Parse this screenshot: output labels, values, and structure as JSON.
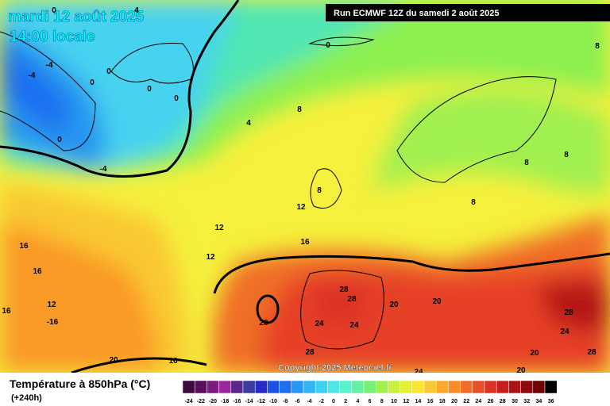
{
  "header": {
    "date": "mardi 12 août 2025",
    "time": "14:00 locale",
    "run": "Run ECMWF 12Z du samedi 2 août 2025"
  },
  "map": {
    "contour_labels": [
      "0",
      "4",
      "-4",
      "-4",
      "0",
      "0",
      "0",
      "0",
      "0",
      "-4",
      "0",
      "8",
      "4",
      "8",
      "8",
      "8",
      "8",
      "8",
      "12",
      "12",
      "12",
      "16",
      "16",
      "16",
      "12",
      "16",
      "-16",
      "20",
      "28",
      "28",
      "24",
      "24",
      "20",
      "20",
      "28",
      "24",
      "28",
      "20",
      "28",
      "20",
      "16",
      "20",
      "24"
    ],
    "copyright": "Copyright 2025 Meteociel.fr"
  },
  "legend": {
    "title": "Température à 850hPa (°C)",
    "lead": "(+240h)",
    "labels": [
      -24,
      -22,
      -20,
      -18,
      -16,
      -14,
      -12,
      -10,
      -8,
      -6,
      -4,
      -2,
      0,
      2,
      4,
      6,
      8,
      10,
      12,
      14,
      16,
      18,
      20,
      22,
      24,
      26,
      28,
      30,
      32,
      34,
      36
    ],
    "colors": [
      "#3c0a3c",
      "#5a0f5a",
      "#7d1a7d",
      "#9a289a",
      "#5a2a8a",
      "#3c3ca0",
      "#2a2ac8",
      "#1e50e6",
      "#1e6ef0",
      "#2896f0",
      "#32b4f0",
      "#3cd2f0",
      "#50e6e6",
      "#5af0c8",
      "#64f0a0",
      "#78f078",
      "#a0f050",
      "#c8f03c",
      "#e6f032",
      "#fae632",
      "#fac832",
      "#faaa28",
      "#fa8c28",
      "#f06e28",
      "#e65028",
      "#dc3228",
      "#c81e1e",
      "#aa1414",
      "#8c0a0a",
      "#6e0505",
      "#000000"
    ]
  }
}
